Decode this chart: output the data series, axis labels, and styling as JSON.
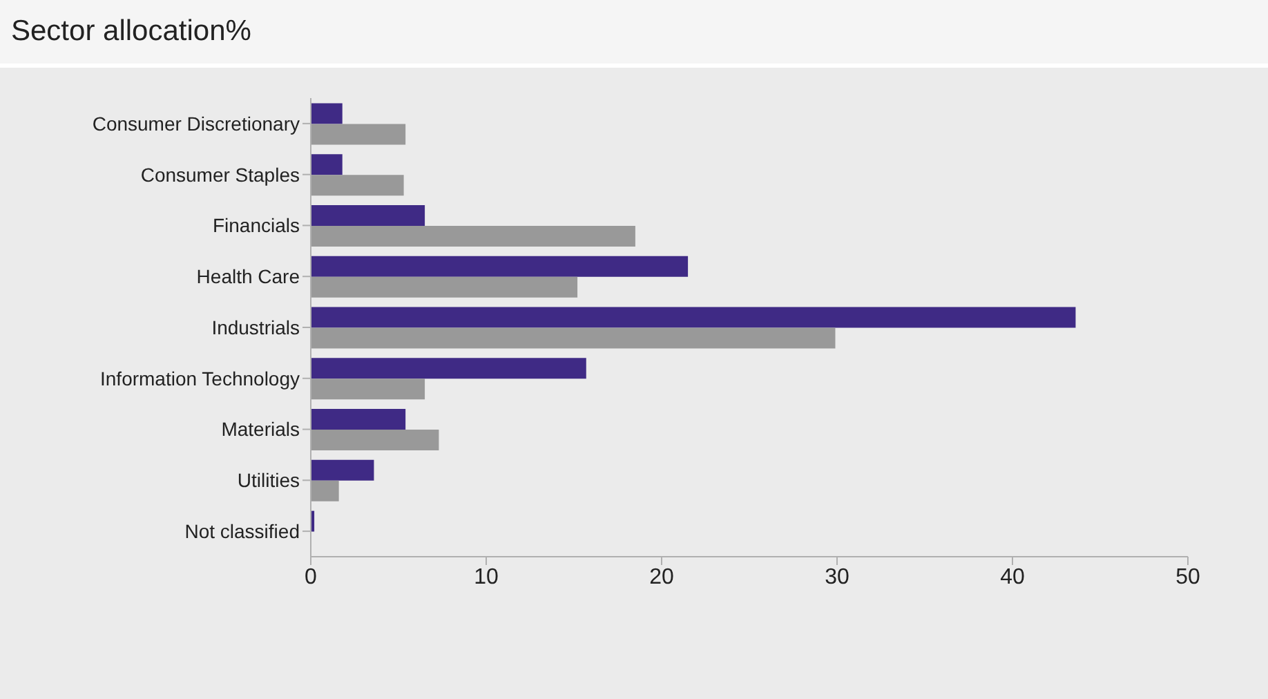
{
  "chart_data": {
    "type": "bar",
    "title": "Sector allocation%",
    "orientation": "horizontal",
    "categories": [
      "Consumer Discretionary",
      "Consumer Staples",
      "Financials",
      "Health Care",
      "Industrials",
      "Information Technology",
      "Materials",
      "Utilities",
      "Not classified"
    ],
    "series": [
      {
        "color": "#3f2a85",
        "values": [
          1.8,
          1.8,
          6.5,
          21.5,
          43.6,
          15.7,
          5.4,
          3.6,
          0.2
        ]
      },
      {
        "color": "#999999",
        "values": [
          5.4,
          5.3,
          18.5,
          15.2,
          29.9,
          6.5,
          7.3,
          1.6,
          0
        ]
      }
    ],
    "xlim": [
      0,
      50
    ],
    "xticks": [
      0,
      10,
      20,
      30,
      40,
      50
    ],
    "grid": false,
    "legend": false
  }
}
